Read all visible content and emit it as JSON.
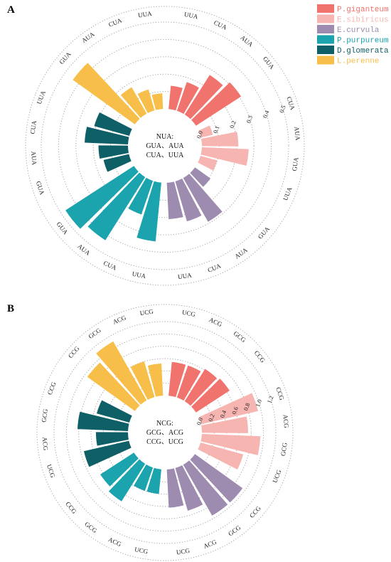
{
  "legend": [
    {
      "name": "P.giganteum",
      "color": "#f0736d"
    },
    {
      "name": "E.sibiricus",
      "color": "#f7b5b1"
    },
    {
      "name": "E.curvula",
      "color": "#9d8bb0"
    },
    {
      "name": "P.purpureum",
      "color": "#1ba3ae"
    },
    {
      "name": "D.glomerata",
      "color": "#0f5f66"
    },
    {
      "name": "L.perenne",
      "color": "#f7bf4a"
    }
  ],
  "chart_data": [
    {
      "panel": "A",
      "type": "bar",
      "center_text": [
        "NUA:",
        "GUA、AUA",
        "CUA、UUA"
      ],
      "ticks": [
        "0.0",
        "0.1",
        "0.2",
        "0.3",
        "0.4",
        "0.5"
      ],
      "ylim": [
        0,
        0.5
      ],
      "series": [
        {
          "name": "P.giganteum",
          "categories": [
            "UUA",
            "CUA",
            "AUA",
            "GUA"
          ],
          "values": [
            0.135,
            0.175,
            0.27,
            0.31
          ]
        },
        {
          "name": "E.sibiricus",
          "categories": [
            "CUA",
            "AUA",
            "GUA",
            "UUA"
          ],
          "values": [
            0.07,
            0.21,
            0.27,
            0.1
          ]
        },
        {
          "name": "E.curvula",
          "categories": [
            "GUA",
            "AUA",
            "CUA",
            "UUA"
          ],
          "values": [
            0.11,
            0.29,
            0.24,
            0.21
          ]
        },
        {
          "name": "P.purpureum",
          "categories": [
            "UUA",
            "CUA",
            "AUA",
            "GUA"
          ],
          "values": [
            0.34,
            0.205,
            0.43,
            0.47
          ]
        },
        {
          "name": "D.glomerata",
          "categories": [
            "GUA",
            "AUA",
            "CUA",
            "UUA"
          ],
          "values": [
            0.15,
            0.17,
            0.25,
            0.21
          ]
        },
        {
          "name": "L.perenne",
          "categories": [
            "GUA",
            "AUA",
            "CUA",
            "UUA"
          ],
          "values": [
            0.44,
            0.175,
            0.125,
            0.09
          ]
        }
      ]
    },
    {
      "panel": "B",
      "type": "bar",
      "center_text": [
        "NCG:",
        "GCG、ACG",
        "CCG、UCG"
      ],
      "ticks": [
        "0.0",
        "0.2",
        "0.4",
        "0.6",
        "0.8",
        "1.0",
        "1.2"
      ],
      "ylim": [
        0,
        1.2
      ],
      "series": [
        {
          "name": "P.giganteum",
          "categories": [
            "UCG",
            "ACG",
            "GCG",
            "CCG"
          ],
          "values": [
            0.55,
            0.55,
            0.62,
            0.65
          ]
        },
        {
          "name": "E.sibiricus",
          "categories": [
            "CCG",
            "ACG",
            "GCG",
            "UCG"
          ],
          "values": [
            0.95,
            0.75,
            0.95,
            0.72
          ]
        },
        {
          "name": "E.curvula",
          "categories": [
            "CCG",
            "GCG",
            "ACG",
            "UCG"
          ],
          "values": [
            0.95,
            0.95,
            0.72,
            0.62
          ]
        },
        {
          "name": "P.purpureum",
          "categories": [
            "UCG",
            "ACG",
            "GCG",
            "CCG"
          ],
          "values": [
            0.4,
            0.4,
            0.72,
            0.65
          ]
        },
        {
          "name": "D.glomerata",
          "categories": [
            "UCG",
            "ACG",
            "GCG",
            "CCG"
          ],
          "values": [
            0.75,
            0.52,
            0.82,
            0.55
          ]
        },
        {
          "name": "L.perenne",
          "categories": [
            "CCG",
            "GCG",
            "ACG",
            "UCG"
          ],
          "values": [
            0.95,
            1.1,
            0.6,
            0.52
          ]
        }
      ]
    }
  ]
}
